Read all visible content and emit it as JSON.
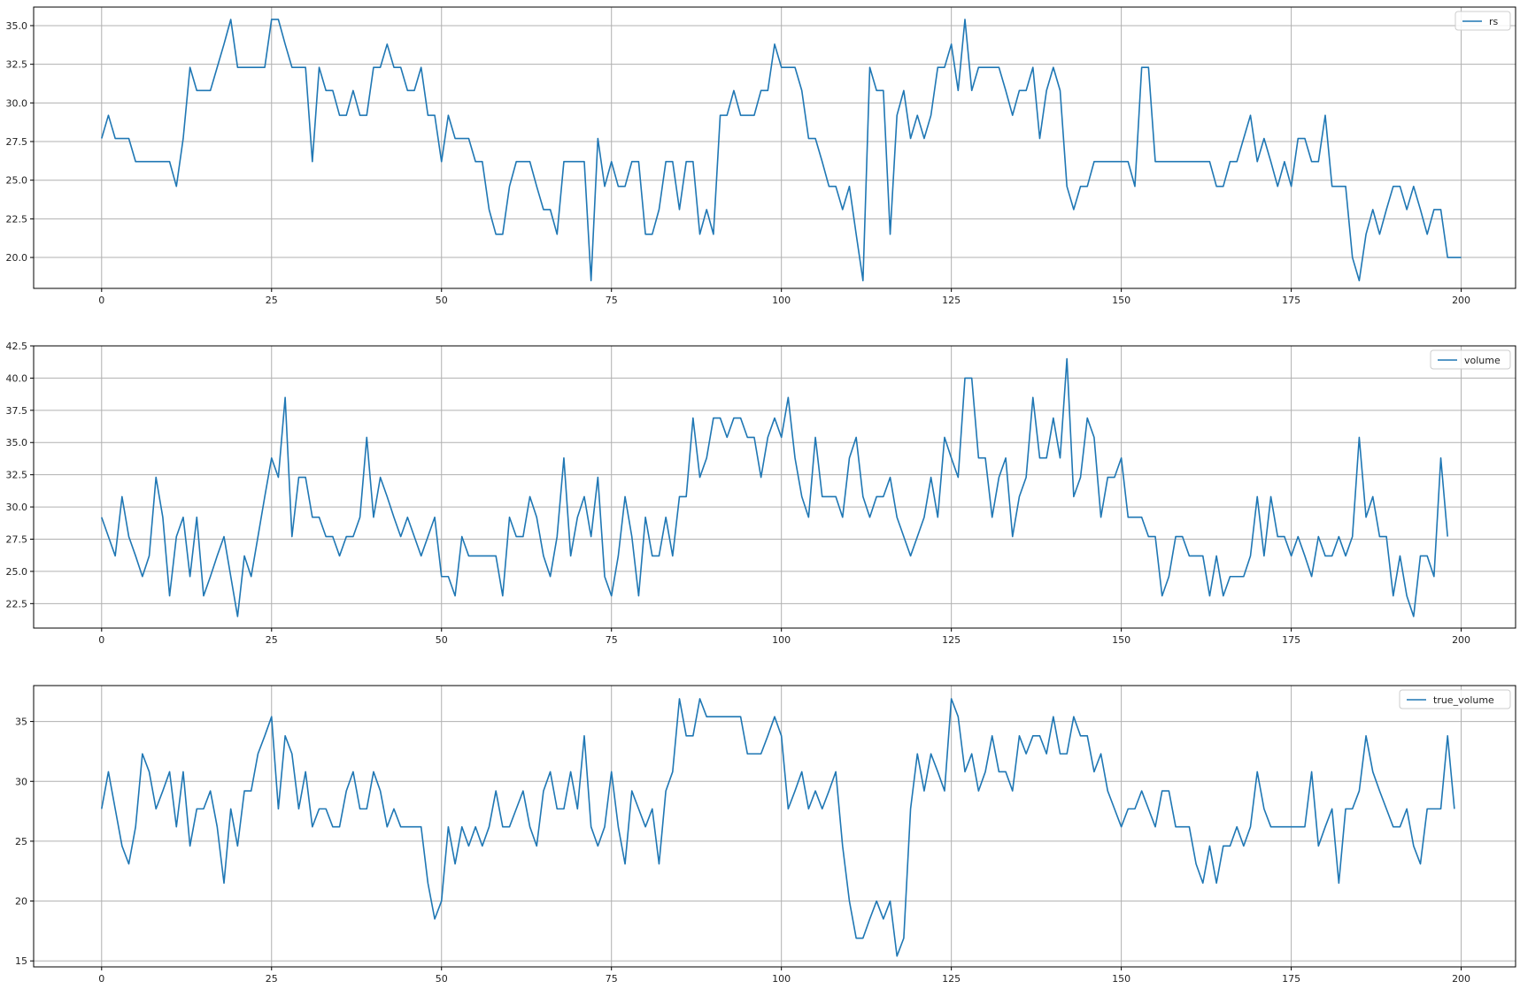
{
  "chart_data": [
    {
      "type": "line",
      "grid": true,
      "legend_placement": "top-right",
      "xlim": [
        -10,
        208
      ],
      "ylim": [
        18,
        36.2
      ],
      "xticks": [
        0,
        25,
        50,
        75,
        100,
        125,
        150,
        175,
        200
      ],
      "xtick_labels": [
        "0",
        "25",
        "50",
        "75",
        "100",
        "125",
        "150",
        "175",
        "200"
      ],
      "yticks": [
        20,
        22.5,
        25,
        27.5,
        30,
        32.5,
        35
      ],
      "ytick_labels": [
        "20.0",
        "22.5",
        "25.0",
        "27.5",
        "30.0",
        "32.5",
        "35.0"
      ],
      "series": [
        {
          "name": "rs",
          "color": "#1f77b4",
          "values": [
            27.7,
            29.2,
            27.7,
            27.7,
            27.7,
            26.2,
            26.2,
            26.2,
            26.2,
            26.2,
            26.2,
            24.6,
            27.7,
            32.3,
            30.8,
            30.8,
            30.8,
            32.3,
            33.8,
            35.4,
            32.3,
            32.3,
            32.3,
            32.3,
            32.3,
            35.4,
            35.4,
            33.8,
            32.3,
            32.3,
            32.3,
            26.2,
            32.3,
            30.8,
            30.8,
            29.2,
            29.2,
            30.8,
            29.2,
            29.2,
            32.3,
            32.3,
            33.8,
            32.3,
            32.3,
            30.8,
            30.8,
            32.3,
            29.2,
            29.2,
            26.2,
            29.2,
            27.7,
            27.7,
            27.7,
            26.2,
            26.2,
            23.1,
            21.5,
            21.5,
            24.6,
            26.2,
            26.2,
            26.2,
            24.6,
            23.1,
            23.1,
            21.5,
            26.2,
            26.2,
            26.2,
            26.2,
            18.5,
            27.7,
            24.6,
            26.2,
            24.6,
            24.6,
            26.2,
            26.2,
            21.5,
            21.5,
            23.1,
            26.2,
            26.2,
            23.1,
            26.2,
            26.2,
            21.5,
            23.1,
            21.5,
            29.2,
            29.2,
            30.8,
            29.2,
            29.2,
            29.2,
            30.8,
            30.8,
            33.8,
            32.3,
            32.3,
            32.3,
            30.8,
            27.7,
            27.7,
            26.2,
            24.6,
            24.6,
            23.1,
            24.6,
            21.5,
            18.5,
            32.3,
            30.8,
            30.8,
            21.5,
            29.2,
            30.8,
            27.7,
            29.2,
            27.7,
            29.2,
            32.3,
            32.3,
            33.8,
            30.8,
            35.4,
            30.8,
            32.3,
            32.3,
            32.3,
            32.3,
            30.8,
            29.2,
            30.8,
            30.8,
            32.3,
            27.7,
            30.8,
            32.3,
            30.8,
            24.6,
            23.1,
            24.6,
            24.6,
            26.2,
            26.2,
            26.2,
            26.2,
            26.2,
            26.2,
            24.6,
            32.3,
            32.3,
            26.2,
            26.2,
            26.2,
            26.2,
            26.2,
            26.2,
            26.2,
            26.2,
            26.2,
            24.6,
            24.6,
            26.2,
            26.2,
            27.7,
            29.2,
            26.2,
            27.7,
            26.2,
            24.6,
            26.2,
            24.6,
            27.7,
            27.7,
            26.2,
            26.2,
            29.2,
            24.6,
            24.6,
            24.6,
            20.0,
            18.5,
            21.5,
            23.1,
            21.5,
            23.1,
            24.6,
            24.6,
            23.1,
            24.6,
            23.1,
            21.5,
            23.1,
            23.1,
            20.0,
            20.0,
            20.0
          ]
        }
      ]
    },
    {
      "type": "line",
      "grid": true,
      "legend_placement": "top-right",
      "xlim": [
        -10,
        208
      ],
      "ylim": [
        20.6,
        42.5
      ],
      "xticks": [
        0,
        25,
        50,
        75,
        100,
        125,
        150,
        175,
        200
      ],
      "xtick_labels": [
        "0",
        "25",
        "50",
        "75",
        "100",
        "125",
        "150",
        "175",
        "200"
      ],
      "yticks": [
        22.5,
        25,
        27.5,
        30,
        32.5,
        35,
        37.5,
        40,
        42.5
      ],
      "ytick_labels": [
        "22.5",
        "25.0",
        "27.5",
        "30.0",
        "32.5",
        "35.0",
        "37.5",
        "40.0",
        "42.5"
      ],
      "series": [
        {
          "name": "volume",
          "color": "#1f77b4",
          "values": [
            29.2,
            27.7,
            26.2,
            30.8,
            27.7,
            26.2,
            24.6,
            26.2,
            32.3,
            29.2,
            23.1,
            27.7,
            29.2,
            24.6,
            29.2,
            23.1,
            24.6,
            26.2,
            27.7,
            24.6,
            21.5,
            26.2,
            24.6,
            27.7,
            30.8,
            33.8,
            32.3,
            38.5,
            27.7,
            32.3,
            32.3,
            29.2,
            29.2,
            27.7,
            27.7,
            26.2,
            27.7,
            27.7,
            29.2,
            35.4,
            29.2,
            32.3,
            30.8,
            29.2,
            27.7,
            29.2,
            27.7,
            26.2,
            27.7,
            29.2,
            24.6,
            24.6,
            23.1,
            27.7,
            26.2,
            26.2,
            26.2,
            26.2,
            26.2,
            23.1,
            29.2,
            27.7,
            27.7,
            30.8,
            29.2,
            26.2,
            24.6,
            27.7,
            33.8,
            26.2,
            29.2,
            30.8,
            27.7,
            32.3,
            24.6,
            23.1,
            26.2,
            30.8,
            27.7,
            23.1,
            29.2,
            26.2,
            26.2,
            29.2,
            26.2,
            30.8,
            30.8,
            36.9,
            32.3,
            33.8,
            36.9,
            36.9,
            35.4,
            36.9,
            36.9,
            35.4,
            35.4,
            32.3,
            35.4,
            36.9,
            35.4,
            38.5,
            33.8,
            30.8,
            29.2,
            35.4,
            30.8,
            30.8,
            30.8,
            29.2,
            33.8,
            35.4,
            30.8,
            29.2,
            30.8,
            30.8,
            32.3,
            29.2,
            27.7,
            26.2,
            27.7,
            29.2,
            32.3,
            29.2,
            35.4,
            33.8,
            32.3,
            40.0,
            40.0,
            33.8,
            33.8,
            29.2,
            32.3,
            33.8,
            27.7,
            30.8,
            32.3,
            38.5,
            33.8,
            33.8,
            36.9,
            33.8,
            41.5,
            30.8,
            32.3,
            36.9,
            35.4,
            29.2,
            32.3,
            32.3,
            33.8,
            29.2,
            29.2,
            29.2,
            27.7,
            27.7,
            23.1,
            24.6,
            27.7,
            27.7,
            26.2,
            26.2,
            26.2,
            23.1,
            26.2,
            23.1,
            24.6,
            24.6,
            24.6,
            26.2,
            30.8,
            26.2,
            30.8,
            27.7,
            27.7,
            26.2,
            27.7,
            26.2,
            24.6,
            27.7,
            26.2,
            26.2,
            27.7,
            26.2,
            27.7,
            35.4,
            29.2,
            30.8,
            27.7,
            27.7,
            23.1,
            26.2,
            23.1,
            21.5,
            26.2,
            26.2,
            24.6,
            33.8,
            27.7
          ]
        }
      ]
    },
    {
      "type": "line",
      "grid": true,
      "legend_placement": "top-right",
      "xlim": [
        -10,
        208
      ],
      "ylim": [
        14.5,
        38.0
      ],
      "xticks": [
        0,
        25,
        50,
        75,
        100,
        125,
        150,
        175,
        200
      ],
      "xtick_labels": [
        "0",
        "25",
        "50",
        "75",
        "100",
        "125",
        "150",
        "175",
        "200"
      ],
      "yticks": [
        15,
        20,
        25,
        30,
        35
      ],
      "ytick_labels": [
        "15",
        "20",
        "25",
        "30",
        "35"
      ],
      "series": [
        {
          "name": "true_volume",
          "color": "#1f77b4",
          "values": [
            27.7,
            30.8,
            27.7,
            24.6,
            23.1,
            26.2,
            32.3,
            30.8,
            27.7,
            29.2,
            30.8,
            26.2,
            30.8,
            24.6,
            27.7,
            27.7,
            29.2,
            26.2,
            21.5,
            27.7,
            24.6,
            29.2,
            29.2,
            32.3,
            33.8,
            35.4,
            27.7,
            33.8,
            32.3,
            27.7,
            30.8,
            26.2,
            27.7,
            27.7,
            26.2,
            26.2,
            29.2,
            30.8,
            27.7,
            27.7,
            30.8,
            29.2,
            26.2,
            27.7,
            26.2,
            26.2,
            26.2,
            26.2,
            21.5,
            18.5,
            20.0,
            26.2,
            23.1,
            26.2,
            24.6,
            26.2,
            24.6,
            26.2,
            29.2,
            26.2,
            26.2,
            27.7,
            29.2,
            26.2,
            24.6,
            29.2,
            30.8,
            27.7,
            27.7,
            30.8,
            27.7,
            33.8,
            26.2,
            24.6,
            26.2,
            30.8,
            26.2,
            23.1,
            29.2,
            27.7,
            26.2,
            27.7,
            23.1,
            29.2,
            30.8,
            36.9,
            33.8,
            33.8,
            36.9,
            35.4,
            35.4,
            35.4,
            35.4,
            35.4,
            35.4,
            32.3,
            32.3,
            32.3,
            33.8,
            35.4,
            33.8,
            27.7,
            29.2,
            30.8,
            27.7,
            29.2,
            27.7,
            29.2,
            30.8,
            24.6,
            20.0,
            16.9,
            16.9,
            18.5,
            20.0,
            18.5,
            20.0,
            15.4,
            16.9,
            27.7,
            32.3,
            29.2,
            32.3,
            30.8,
            29.2,
            36.9,
            35.4,
            30.8,
            32.3,
            29.2,
            30.8,
            33.8,
            30.8,
            30.8,
            29.2,
            33.8,
            32.3,
            33.8,
            33.8,
            32.3,
            35.4,
            32.3,
            32.3,
            35.4,
            33.8,
            33.8,
            30.8,
            32.3,
            29.2,
            27.7,
            26.2,
            27.7,
            27.7,
            29.2,
            27.7,
            26.2,
            29.2,
            29.2,
            26.2,
            26.2,
            26.2,
            23.1,
            21.5,
            24.6,
            21.5,
            24.6,
            24.6,
            26.2,
            24.6,
            26.2,
            30.8,
            27.7,
            26.2,
            26.2,
            26.2,
            26.2,
            26.2,
            26.2,
            30.8,
            24.6,
            26.2,
            27.7,
            21.5,
            27.7,
            27.7,
            29.2,
            33.8,
            30.8,
            29.2,
            27.7,
            26.2,
            26.2,
            27.7,
            24.6,
            23.1,
            27.7,
            27.7,
            27.7,
            33.8,
            27.7
          ]
        }
      ]
    }
  ]
}
